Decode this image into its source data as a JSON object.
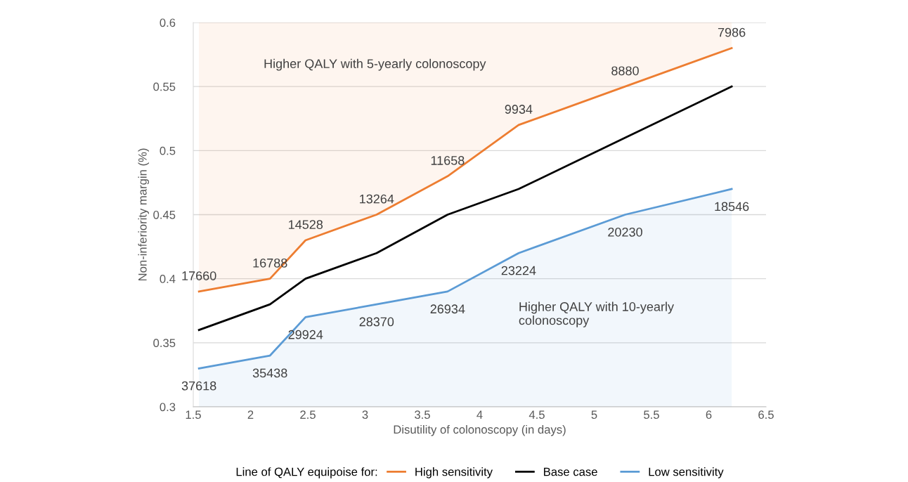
{
  "chart_data": {
    "type": "line",
    "xlabel": "Disutility of colonoscopy (in days)",
    "ylabel": "Non-inferiority margin (%)",
    "x": [
      1.55,
      2.17,
      2.48,
      3.1,
      3.72,
      4.34,
      5.27,
      6.2
    ],
    "series": [
      {
        "name": "High sensitivity",
        "color": "#ed7d31",
        "values": [
          0.39,
          0.4,
          0.43,
          0.45,
          0.48,
          0.52,
          0.55,
          0.58
        ],
        "lower": [
          0.39,
          0.4,
          0.43,
          0.45,
          0.48,
          0.52,
          0.55,
          0.58
        ],
        "upper": [
          0.6,
          0.6,
          0.6,
          0.6,
          0.6,
          0.6,
          0.6,
          0.6
        ]
      },
      {
        "name": "Base case",
        "color": "#000000",
        "values": [
          0.36,
          0.38,
          0.4,
          0.42,
          0.45,
          0.47,
          0.51,
          0.55
        ]
      },
      {
        "name": "Low sensitivity",
        "color": "#5b9bd5",
        "values": [
          0.33,
          0.34,
          0.37,
          0.38,
          0.39,
          0.42,
          0.45,
          0.47
        ],
        "lower": [
          0.3,
          0.3,
          0.3,
          0.3,
          0.3,
          0.3,
          0.3,
          0.3
        ],
        "upper": [
          0.33,
          0.34,
          0.37,
          0.38,
          0.39,
          0.42,
          0.45,
          0.47
        ]
      }
    ],
    "xlim": [
      1.5,
      6.5
    ],
    "xticks": [
      1.5,
      2,
      2.5,
      3,
      3.5,
      4,
      4.5,
      5,
      5.5,
      6,
      6.5
    ],
    "ylim": [
      0.3,
      0.6
    ],
    "yticks": [
      0.3,
      0.35,
      0.4,
      0.45,
      0.5,
      0.55,
      0.6
    ],
    "grid": "y",
    "legend": "bottom",
    "legend_title": "Line of QALY equipoise for:",
    "marker": "none",
    "line_style": "solid",
    "annotations": [
      {
        "text": "17660",
        "x": 1.55,
        "y": 0.39
      },
      {
        "text": "16788",
        "x": 2.17,
        "y": 0.4
      },
      {
        "text": "14528",
        "x": 2.48,
        "y": 0.43
      },
      {
        "text": "13264",
        "x": 3.1,
        "y": 0.45
      },
      {
        "text": "11658",
        "x": 3.72,
        "y": 0.48
      },
      {
        "text": "9934",
        "x": 4.34,
        "y": 0.52
      },
      {
        "text": "8880",
        "x": 5.27,
        "y": 0.55
      },
      {
        "text": "7986",
        "x": 6.2,
        "y": 0.58
      },
      {
        "text": "37618",
        "x": 1.55,
        "y": 0.33
      },
      {
        "text": "35438",
        "x": 2.17,
        "y": 0.34
      },
      {
        "text": "29924",
        "x": 2.48,
        "y": 0.37
      },
      {
        "text": "28370",
        "x": 3.1,
        "y": 0.38
      },
      {
        "text": "26934",
        "x": 3.72,
        "y": 0.39
      },
      {
        "text": "23224",
        "x": 4.34,
        "y": 0.42
      },
      {
        "text": "20230",
        "x": 5.27,
        "y": 0.45
      },
      {
        "text": "18546",
        "x": 6.2,
        "y": 0.47
      },
      "Higher QALY with 5-yearly colonoscopy",
      "Higher QALY with 10-yearly\ncolonoscopy"
    ]
  }
}
